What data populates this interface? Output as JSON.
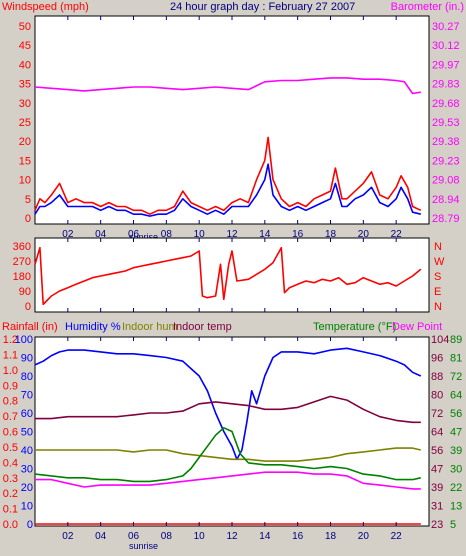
{
  "chart_data": [
    {
      "type": "line",
      "title": "24 hour graph day : February 27 2007",
      "left_label": "Windspeed (mph)",
      "right_label": "Barometer (in.)",
      "x_ticks": [
        "02",
        "04",
        "06",
        "08",
        "10",
        "12",
        "14",
        "16",
        "18",
        "20",
        "22"
      ],
      "x_annotation": "sunrise",
      "left_ticks": [
        "50",
        "45",
        "40",
        "35",
        "30",
        "25",
        "20",
        "15",
        "10",
        "5",
        "0"
      ],
      "right_ticks": [
        "30.27",
        "30.12",
        "29.97",
        "29.83",
        "29.68",
        "29.53",
        "29.38",
        "29.23",
        "29.08",
        "28.94",
        "28.79"
      ],
      "ylim_left": [
        0,
        50
      ],
      "ylim_right": [
        28.79,
        30.27
      ],
      "series": [
        {
          "axis": "right",
          "color": "#ff00ff",
          "x": [
            0,
            1,
            2,
            3,
            4,
            5,
            6,
            7,
            8,
            9,
            10,
            11,
            12,
            13,
            14,
            15,
            16,
            17,
            18,
            19,
            20,
            21,
            22,
            22.5,
            23,
            23.5
          ],
          "y": [
            29.8,
            29.79,
            29.78,
            29.77,
            29.78,
            29.79,
            29.8,
            29.8,
            29.79,
            29.78,
            29.79,
            29.8,
            29.79,
            29.78,
            29.84,
            29.85,
            29.85,
            29.86,
            29.87,
            29.87,
            29.86,
            29.86,
            29.85,
            29.84,
            29.75,
            29.76
          ]
        },
        {
          "axis": "left",
          "color": "#ff0000",
          "x": [
            0,
            0.3,
            0.6,
            1,
            1.5,
            2,
            2.5,
            3,
            3.5,
            4,
            4.5,
            5,
            5.5,
            6,
            6.5,
            7,
            7.5,
            8,
            8.5,
            9,
            9.5,
            10,
            10.5,
            11,
            11.5,
            12,
            12.5,
            13,
            13.5,
            14,
            14.2,
            14.5,
            15,
            15.5,
            16,
            16.5,
            17,
            17.5,
            18,
            18.3,
            18.7,
            19,
            19.5,
            20,
            20.5,
            21,
            21.5,
            22,
            22.3,
            22.7,
            23,
            23.5
          ],
          "y": [
            2,
            5,
            4,
            6,
            9,
            4,
            5,
            4,
            4,
            3,
            4,
            3,
            3,
            2,
            2,
            1,
            2,
            2,
            3,
            7,
            4,
            3,
            2,
            3,
            2,
            4,
            5,
            4,
            10,
            15,
            21,
            10,
            5,
            3,
            4,
            3,
            5,
            6,
            7,
            13,
            5,
            5,
            7,
            9,
            12,
            6,
            5,
            8,
            11,
            8,
            3,
            2
          ]
        },
        {
          "axis": "left",
          "color": "#0000ff",
          "x": [
            0,
            0.3,
            0.6,
            1,
            1.5,
            2,
            2.5,
            3,
            3.5,
            4,
            4.5,
            5,
            5.5,
            6,
            6.5,
            7,
            7.5,
            8,
            8.5,
            9,
            9.5,
            10,
            10.5,
            11,
            11.5,
            12,
            12.5,
            13,
            13.5,
            14,
            14.2,
            14.5,
            15,
            15.5,
            16,
            16.5,
            17,
            17.5,
            18,
            18.3,
            18.7,
            19,
            19.5,
            20,
            20.5,
            21,
            21.5,
            22,
            22.3,
            22.7,
            23,
            23.5
          ],
          "y": [
            1,
            3,
            3,
            4,
            6,
            3,
            3,
            3,
            3,
            2,
            3,
            2,
            2,
            1,
            1,
            0.5,
            1,
            1,
            2,
            5,
            3,
            2,
            1,
            2,
            1,
            3,
            3,
            3,
            6,
            10,
            14,
            6,
            3,
            2,
            3,
            2,
            3,
            4,
            5,
            9,
            3,
            3,
            5,
            6,
            8,
            4,
            3,
            5,
            8,
            5,
            1.5,
            1
          ]
        }
      ]
    },
    {
      "type": "line",
      "title": "",
      "x_ticks": [
        "02",
        "04",
        "06",
        "08",
        "10",
        "12",
        "14",
        "16",
        "18",
        "20",
        "22"
      ],
      "x_annotation": "",
      "left_ticks": [
        "360",
        "270",
        "180",
        "90",
        "0"
      ],
      "right_ticks": [
        "N",
        "W",
        "S",
        "E",
        "N"
      ],
      "ylim_left": [
        0,
        360
      ],
      "series": [
        {
          "axis": "left",
          "color": "#ff0000",
          "x": [
            0,
            0.3,
            0.5,
            0.7,
            1,
            1.5,
            2,
            2.5,
            3,
            3.5,
            4,
            4.5,
            5,
            5.5,
            6,
            6.5,
            7,
            7.5,
            8,
            8.5,
            9,
            9.5,
            10,
            10.2,
            10.5,
            11,
            11.3,
            11.5,
            11.8,
            12,
            12.3,
            13,
            13.5,
            14,
            14.5,
            15,
            15.2,
            15.5,
            16,
            16.5,
            17,
            17.5,
            18,
            18.5,
            19,
            19.5,
            20,
            20.5,
            21,
            21.5,
            22,
            22.5,
            23,
            23.5
          ],
          "y": [
            250,
            350,
            10,
            30,
            60,
            90,
            110,
            130,
            150,
            170,
            180,
            190,
            200,
            210,
            230,
            240,
            250,
            260,
            270,
            280,
            290,
            300,
            330,
            60,
            50,
            60,
            250,
            40,
            250,
            330,
            150,
            160,
            190,
            220,
            260,
            350,
            80,
            110,
            130,
            150,
            140,
            160,
            150,
            170,
            130,
            140,
            170,
            150,
            130,
            140,
            120,
            150,
            180,
            220
          ]
        }
      ]
    },
    {
      "type": "line",
      "title": "",
      "header_labels": [
        "Rainfall (in)",
        "Humidity %",
        "Indoor hum",
        "Indoor temp",
        "Temperature (°F)",
        "Dew Point"
      ],
      "x_ticks": [
        "02",
        "04",
        "06",
        "08",
        "10",
        "12",
        "14",
        "16",
        "18",
        "20",
        "22"
      ],
      "x_annotation": "sunrise",
      "left_ticks_rain": [
        "1.2",
        "1.1",
        "1.0",
        "0.9",
        "0.8",
        "0.7",
        "0.6",
        "0.5",
        "0.4",
        "0.3",
        "0.2",
        "0.1",
        "0.0"
      ],
      "left_ticks_humidity": [
        "100",
        "90",
        "80",
        "70",
        "60",
        "50",
        "40",
        "30",
        "20",
        "10",
        "0"
      ],
      "right_ticks_1": [
        "104",
        "96",
        "88",
        "80",
        "72",
        "64",
        "56",
        "47",
        "39",
        "31",
        "23"
      ],
      "right_ticks_2": [
        "89",
        "81",
        "72",
        "64",
        "56",
        "47",
        "39",
        "30",
        "22",
        "13",
        "5"
      ],
      "ylim_humidity": [
        0,
        100
      ],
      "ylim_rain": [
        0,
        1.2
      ],
      "series": [
        {
          "axis": "humidity",
          "color": "#0000ff",
          "x": [
            0,
            0.5,
            1,
            1.5,
            2,
            3,
            4,
            5,
            6,
            7,
            8,
            9,
            9.5,
            10,
            10.5,
            11,
            11.5,
            12,
            12.3,
            12.6,
            12.9,
            13.2,
            13.5,
            14,
            14.5,
            15,
            16,
            17,
            18,
            19,
            20,
            21,
            22,
            22.5,
            23,
            23.5
          ],
          "y": [
            86,
            88,
            91,
            93,
            94,
            94,
            93,
            92,
            92,
            91,
            90,
            88,
            84,
            80,
            72,
            60,
            50,
            42,
            35,
            40,
            55,
            72,
            65,
            80,
            90,
            93,
            93,
            92,
            94,
            95,
            93,
            91,
            88,
            86,
            82,
            80
          ]
        },
        {
          "axis": "humidity",
          "color": "#808000",
          "x": [
            0,
            1,
            2,
            3,
            4,
            5,
            6,
            7,
            8,
            9,
            10,
            11,
            12,
            13,
            14,
            15,
            16,
            17,
            18,
            19,
            20,
            21,
            22,
            23,
            23.5
          ],
          "y": [
            40,
            40,
            40,
            40,
            40,
            40,
            39,
            40,
            40,
            38,
            37,
            36,
            35,
            35,
            34,
            34,
            34,
            35,
            36,
            38,
            39,
            40,
            41,
            41,
            40
          ]
        },
        {
          "axis": "humidity",
          "color": "#800040",
          "x": [
            0,
            1,
            2,
            3,
            4,
            5,
            6,
            7,
            8,
            9,
            10,
            11,
            12,
            13,
            14,
            15,
            16,
            17,
            18,
            19,
            20,
            21,
            22,
            23,
            23.5
          ],
          "y": [
            57,
            57,
            58,
            58,
            58,
            58,
            59,
            60,
            60,
            61,
            65,
            66,
            65,
            64,
            62,
            62,
            63,
            66,
            69,
            67,
            62,
            58,
            56,
            55,
            55
          ]
        },
        {
          "axis": "humidity",
          "color": "#008000",
          "x": [
            0,
            1,
            2,
            3,
            4,
            5,
            6,
            7,
            8,
            9,
            9.5,
            10,
            10.5,
            11,
            11.5,
            12,
            12.5,
            13,
            14,
            15,
            16,
            17,
            18,
            19,
            20,
            21,
            22,
            23,
            23.5
          ],
          "y": [
            27,
            26,
            25,
            25,
            24,
            24,
            23,
            23,
            24,
            26,
            30,
            36,
            42,
            48,
            52,
            50,
            38,
            33,
            32,
            32,
            31,
            30,
            31,
            30,
            27,
            26,
            24,
            24,
            25
          ]
        },
        {
          "axis": "humidity",
          "color": "#ff00ff",
          "x": [
            0,
            1,
            2,
            3,
            4,
            5,
            6,
            7,
            8,
            9,
            10,
            11,
            12,
            13,
            14,
            15,
            16,
            17,
            18,
            19,
            20,
            21,
            22,
            23,
            23.5
          ],
          "y": [
            24,
            24,
            22,
            20,
            21,
            21,
            21,
            21,
            22,
            23,
            24,
            25,
            26,
            27,
            28,
            28,
            28,
            27,
            27,
            26,
            22,
            21,
            20,
            19,
            19
          ]
        },
        {
          "axis": "rain",
          "color": "#ff0000",
          "x": [
            0,
            23.5
          ],
          "y": [
            0,
            0
          ]
        }
      ]
    }
  ]
}
